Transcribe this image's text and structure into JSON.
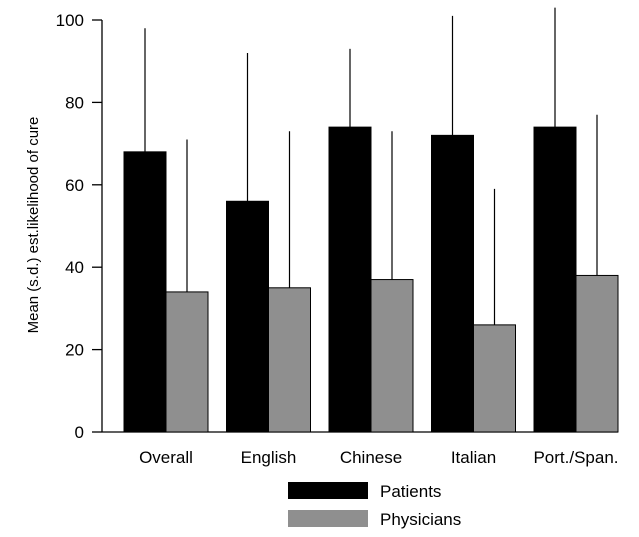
{
  "chart_data": {
    "type": "bar",
    "title": "",
    "xlabel": "",
    "ylabel": "Mean (s.d.) est.likelihood of cure",
    "ylim": [
      0,
      100
    ],
    "yticks": [
      "0",
      "20",
      "40",
      "60",
      "80",
      "100"
    ],
    "categories": [
      "Overall",
      "English",
      "Chinese",
      "Italian",
      "Port./Span."
    ],
    "series": [
      {
        "name": "Patients",
        "color": "#000000",
        "values": [
          68,
          56,
          74,
          72,
          74
        ],
        "error_upper": [
          98,
          92,
          93,
          101,
          103
        ]
      },
      {
        "name": "Physicians",
        "color": "#8f8f8f",
        "values": [
          34,
          35,
          37,
          26,
          38
        ],
        "error_upper": [
          71,
          73,
          73,
          59,
          77
        ]
      }
    ],
    "error_bars": "upper",
    "grid": false,
    "legend": "bottom-center"
  }
}
